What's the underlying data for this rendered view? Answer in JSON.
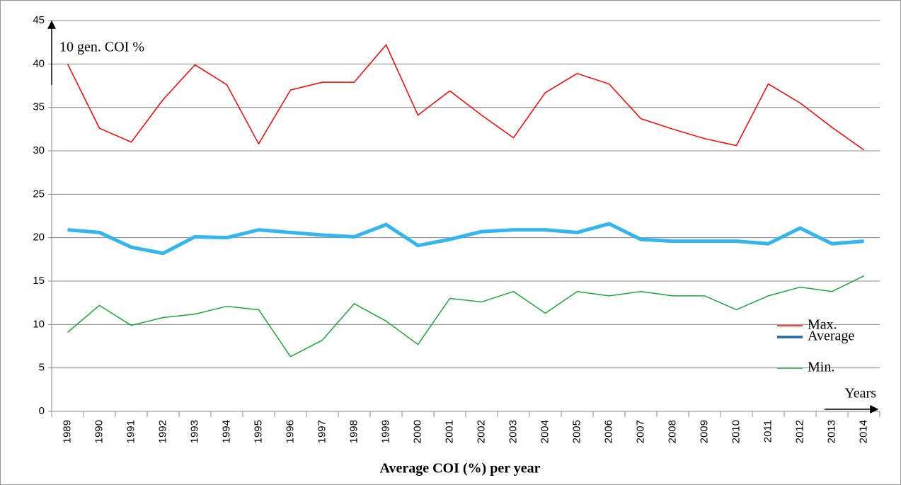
{
  "chart_data": {
    "type": "line",
    "title": "Average COI (%) per year",
    "y_annotation": "10 gen. COI %",
    "x_annotation": "Years",
    "categories": [
      "1989",
      "1990",
      "1991",
      "1992",
      "1993",
      "1994",
      "1995",
      "1996",
      "1997",
      "1998",
      "1999",
      "2000",
      "2001",
      "2002",
      "2003",
      "2004",
      "2005",
      "2006",
      "2007",
      "2008",
      "2009",
      "2010",
      "2011",
      "2012",
      "2013",
      "2014"
    ],
    "series": [
      {
        "name": "Max.",
        "color": "#ff0000",
        "width": 1.5,
        "values": [
          40,
          32.6,
          31.0,
          35.9,
          39.9,
          37.6,
          30.8,
          37.0,
          37.9,
          37.9,
          42.2,
          34.1,
          36.9,
          34.1,
          31.5,
          36.7,
          38.9,
          37.7,
          33.7,
          32.5,
          31.4,
          30.6,
          37.7,
          35.5,
          32.7,
          30.1
        ]
      },
      {
        "name": "Average",
        "color": "#33b5ee",
        "legend_color": "#1f6aa5",
        "width": 5,
        "values": [
          20.9,
          20.6,
          18.9,
          18.2,
          20.1,
          20.0,
          20.9,
          20.6,
          20.3,
          20.1,
          21.5,
          19.1,
          19.8,
          20.7,
          20.9,
          20.9,
          20.6,
          21.6,
          19.8,
          19.6,
          19.6,
          19.6,
          19.3,
          21.1,
          19.3,
          19.6
        ]
      },
      {
        "name": "Min.",
        "color": "#1aa83a",
        "width": 1.5,
        "values": [
          9.1,
          12.2,
          9.9,
          10.8,
          11.2,
          12.1,
          11.7,
          6.3,
          8.2,
          12.4,
          10.4,
          7.7,
          13.0,
          12.6,
          13.8,
          11.3,
          13.8,
          13.3,
          13.8,
          13.3,
          13.3,
          11.7,
          13.3,
          14.3,
          13.8,
          15.6
        ]
      }
    ],
    "ylim": [
      0,
      45
    ],
    "yticks": [
      0,
      5,
      10,
      15,
      20,
      25,
      30,
      35,
      40,
      45
    ],
    "grid": true,
    "legend": "right"
  }
}
